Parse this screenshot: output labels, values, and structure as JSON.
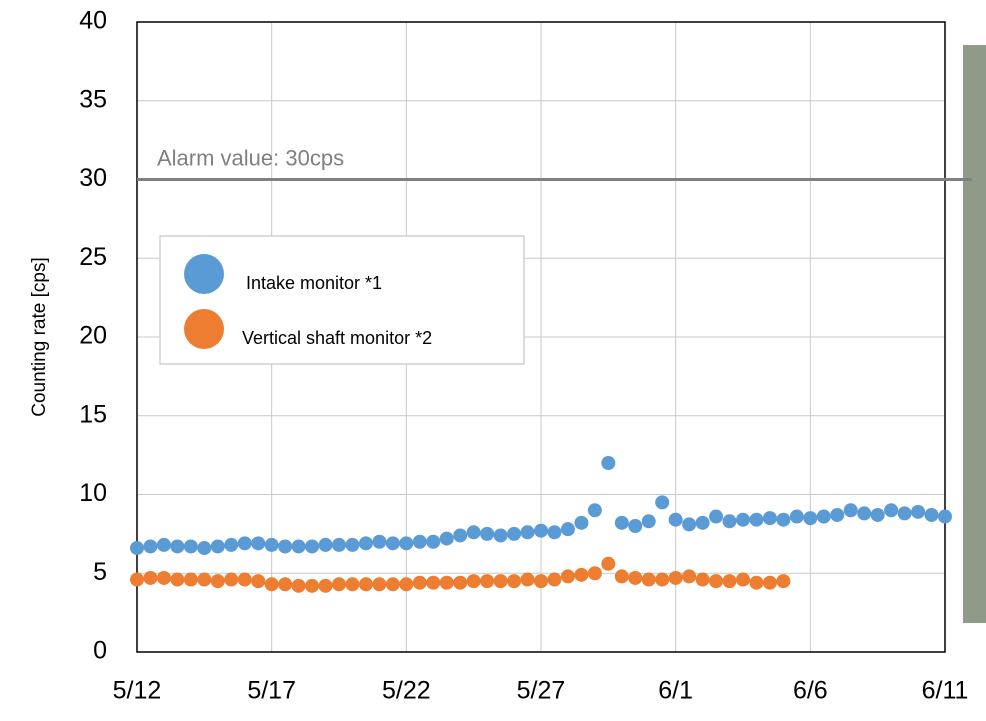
{
  "chart_data": {
    "type": "scatter",
    "ylabel": "Counting rate [cps]",
    "ylim": [
      0,
      40
    ],
    "yticks": [
      0,
      5,
      10,
      15,
      20,
      25,
      30,
      35,
      40
    ],
    "xlim": [
      0,
      30
    ],
    "xticks": [
      {
        "value": 0,
        "label": "5/12"
      },
      {
        "value": 5,
        "label": "5/17"
      },
      {
        "value": 10,
        "label": "5/22"
      },
      {
        "value": 15,
        "label": "5/27"
      },
      {
        "value": 20,
        "label": "6/1"
      },
      {
        "value": 25,
        "label": "6/6"
      },
      {
        "value": 30,
        "label": "6/11"
      }
    ],
    "grid": true,
    "alarm": {
      "value": 30,
      "label": "Alarm value: 30cps",
      "color": "#808080"
    },
    "legend": "upper left",
    "series": [
      {
        "name": "Intake monitor *1",
        "color": "#5b9bd5",
        "x": [
          0,
          0.5,
          1,
          1.5,
          2,
          2.5,
          3,
          3.5,
          4,
          4.5,
          5,
          5.5,
          6,
          6.5,
          7,
          7.5,
          8,
          8.5,
          9,
          9.5,
          10,
          10.5,
          11,
          11.5,
          12,
          12.5,
          13,
          13.5,
          14,
          14.5,
          15,
          15.5,
          16,
          16.5,
          17,
          17.5,
          18,
          18.5,
          19,
          19.5,
          20,
          20.5,
          21,
          21.5,
          22,
          22.5,
          23,
          23.5,
          24,
          24.5,
          25,
          25.5,
          26,
          26.5,
          27,
          27.5,
          28,
          28.5,
          29,
          29.5,
          30
        ],
        "values": [
          6.6,
          6.7,
          6.8,
          6.7,
          6.7,
          6.6,
          6.7,
          6.8,
          6.9,
          6.9,
          6.8,
          6.7,
          6.7,
          6.7,
          6.8,
          6.8,
          6.8,
          6.9,
          7.0,
          6.9,
          6.9,
          7.0,
          7.0,
          7.2,
          7.4,
          7.6,
          7.5,
          7.4,
          7.5,
          7.6,
          7.7,
          7.6,
          7.8,
          8.2,
          9.0,
          12.0,
          8.2,
          8.0,
          8.3,
          9.5,
          8.4,
          8.1,
          8.2,
          8.6,
          8.3,
          8.4,
          8.4,
          8.5,
          8.4,
          8.6,
          8.5,
          8.6,
          8.7,
          9.0,
          8.8,
          8.7,
          9.0,
          8.8,
          8.9,
          8.7,
          8.6
        ]
      },
      {
        "name": "Vertical shaft monitor *2",
        "color": "#ed7d31",
        "x": [
          0,
          0.5,
          1,
          1.5,
          2,
          2.5,
          3,
          3.5,
          4,
          4.5,
          5,
          5.5,
          6,
          6.5,
          7,
          7.5,
          8,
          8.5,
          9,
          9.5,
          10,
          10.5,
          11,
          11.5,
          12,
          12.5,
          13,
          13.5,
          14,
          14.5,
          15,
          15.5,
          16,
          16.5,
          17,
          17.5,
          18,
          18.5,
          19,
          19.5,
          20,
          20.5,
          21,
          21.5,
          22,
          22.5,
          23,
          23.5,
          24
        ],
        "values": [
          4.6,
          4.7,
          4.7,
          4.6,
          4.6,
          4.6,
          4.5,
          4.6,
          4.6,
          4.5,
          4.3,
          4.3,
          4.2,
          4.2,
          4.2,
          4.3,
          4.3,
          4.3,
          4.3,
          4.3,
          4.3,
          4.4,
          4.4,
          4.4,
          4.4,
          4.5,
          4.5,
          4.5,
          4.5,
          4.6,
          4.5,
          4.6,
          4.8,
          4.9,
          5.0,
          5.6,
          4.8,
          4.7,
          4.6,
          4.6,
          4.7,
          4.8,
          4.6,
          4.5,
          4.5,
          4.6,
          4.4,
          4.4,
          4.5
        ]
      }
    ]
  }
}
